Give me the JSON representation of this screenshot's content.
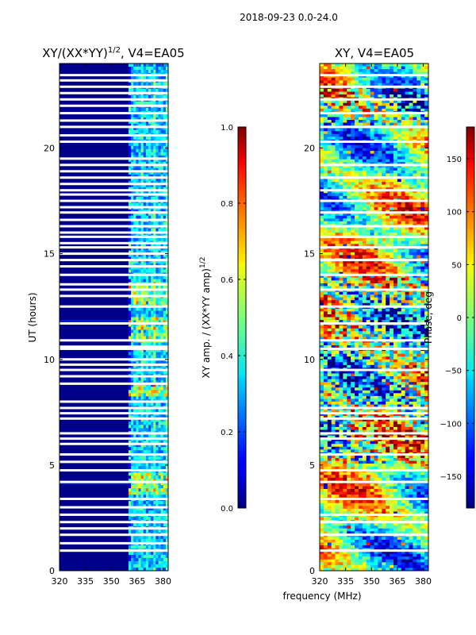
{
  "figure": {
    "suptitle": "2018-09-23 0.0-24.0",
    "shared_xlabel": "frequency (MHz)"
  },
  "chart_data": [
    {
      "type": "heatmap",
      "id": "left",
      "title_main": "XY/(XX*YY)",
      "title_sup": "1/2",
      "title_tail": ", V4=EA05",
      "xlabel": "frequency (MHz)",
      "ylabel": "UT (hours)",
      "xlim": [
        320,
        383
      ],
      "ylim": [
        0,
        24
      ],
      "xticks": [
        320,
        335,
        350,
        365,
        380
      ],
      "yticks": [
        0,
        5,
        10,
        15,
        20
      ],
      "band_start_mhz": 360,
      "colorbar": {
        "range": [
          0.0,
          1.0
        ],
        "ticks": [
          0.0,
          0.2,
          0.4,
          0.6,
          0.8,
          1.0
        ],
        "tick_labels": [
          "0.0",
          "0.2",
          "0.4",
          "0.6",
          "0.8",
          "1.0"
        ],
        "label_main": "XY amp. / (XX*YY amp)",
        "label_sup": "1/2"
      },
      "flag_gaps_hours": [
        0.95,
        1.3,
        1.7,
        2.0,
        2.3,
        2.65,
        3.0,
        3.4,
        4.2,
        4.75,
        5.15,
        5.5,
        6.0,
        6.25,
        6.5,
        7.2,
        7.45,
        7.7,
        8.0,
        8.85,
        9.2,
        9.5,
        9.75,
        10.0,
        10.5,
        10.6,
        10.9,
        11.7,
        12.5,
        13.0,
        13.3,
        13.55,
        14.0,
        14.4,
        14.7,
        15.0,
        15.3,
        15.5,
        15.8,
        16.0,
        16.3,
        16.6,
        16.95,
        17.2,
        17.5,
        17.8,
        18.0,
        18.3,
        18.6,
        18.9,
        19.2,
        19.5,
        20.3,
        20.6,
        21.0,
        21.3,
        21.65,
        22.0,
        22.3,
        22.6,
        22.9,
        23.2,
        23.45
      ]
    },
    {
      "type": "heatmap",
      "id": "right",
      "title_main": "XY, V4=EA05",
      "xlabel": "frequency (MHz)",
      "ylabel": "",
      "xlim": [
        320,
        383
      ],
      "ylim": [
        0,
        24
      ],
      "xticks": [
        320,
        335,
        350,
        365,
        380
      ],
      "yticks": [
        0,
        5,
        10,
        15,
        20
      ],
      "colorbar": {
        "range": [
          -180,
          180
        ],
        "ticks": [
          -150,
          -100,
          -50,
          0,
          50,
          100,
          150
        ],
        "tick_labels": [
          "−150",
          "−100",
          "−50",
          "0",
          "50",
          "100",
          "150"
        ],
        "label_main": "Phase, deg"
      },
      "flag_gaps_hours": [
        0.95,
        1.7,
        2.3,
        2.65,
        3.4,
        4.2,
        4.75,
        5.5,
        6.25,
        6.5,
        7.2,
        7.45,
        7.7,
        9.5,
        10.5,
        10.9,
        11.7,
        12.5,
        13.3,
        14.0,
        14.7,
        15.3,
        15.8,
        16.3,
        16.95,
        17.5,
        18.0,
        18.6,
        19.2,
        20.3,
        21.0,
        21.65,
        22.3,
        22.9,
        23.45
      ]
    }
  ]
}
